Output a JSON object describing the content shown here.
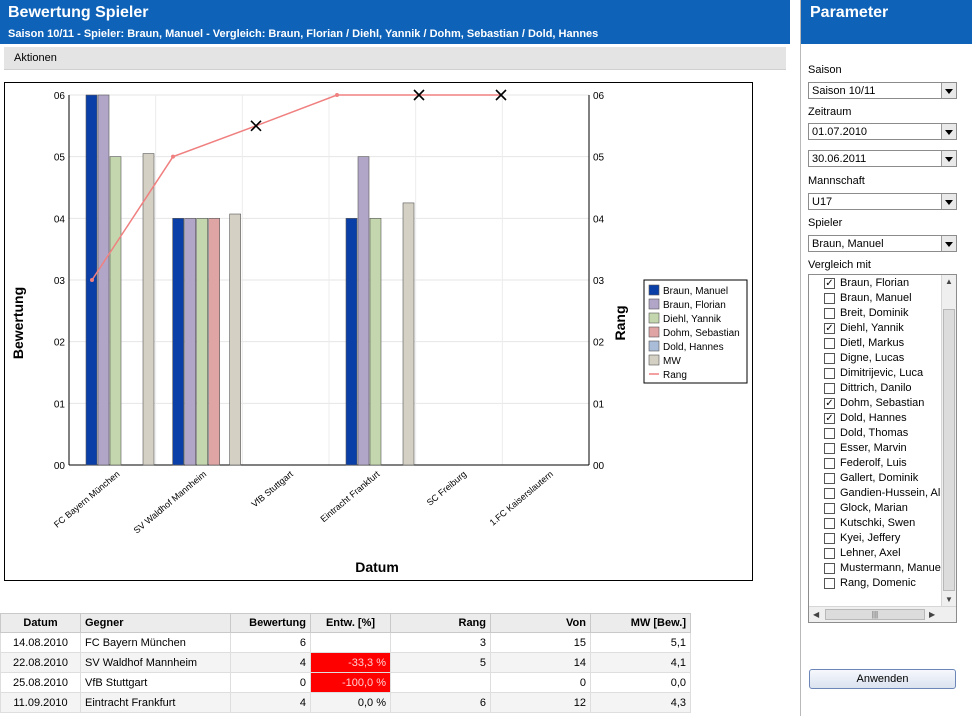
{
  "header": {
    "title": "Bewertung Spieler",
    "subtitle": "Saison 10/11 - Spieler: Braun, Manuel - Vergleich: Braun, Florian / Diehl, Yannik / Dohm, Sebastian / Dold, Hannes"
  },
  "toolbar": {
    "actions_label": "Aktionen"
  },
  "chart_data": {
    "type": "bar",
    "title": "",
    "xlabel": "Datum",
    "ylabel": "Bewertung",
    "y2label": "Rang",
    "ylim": [
      0,
      6
    ],
    "y2lim": [
      0,
      6
    ],
    "yticks": [
      "00",
      "01",
      "02",
      "03",
      "04",
      "05",
      "06"
    ],
    "y2ticks": [
      "00",
      "01",
      "02",
      "03",
      "04",
      "05",
      "06"
    ],
    "categories": [
      "FC Bayern München",
      "SV Waldhof Mannheim",
      "VfB Stuttgart",
      "Eintracht Frankfurt",
      "SC Freiburg",
      "1.FC Kaiserslautern"
    ],
    "series": [
      {
        "name": "Braun, Manuel",
        "color": "#0b3fa8",
        "values": [
          6,
          4,
          null,
          4,
          null,
          null
        ]
      },
      {
        "name": "Braun, Florian",
        "color": "#b2a6c8",
        "values": [
          6,
          4,
          null,
          5,
          null,
          null
        ]
      },
      {
        "name": "Diehl, Yannik",
        "color": "#c3d6ad",
        "values": [
          5,
          4,
          null,
          4,
          null,
          null
        ]
      },
      {
        "name": "Dohm, Sebastian",
        "color": "#dfa4a4",
        "values": [
          null,
          4,
          null,
          null,
          null,
          null
        ]
      },
      {
        "name": "Dold, Hannes",
        "color": "#a9bcd8",
        "values": [
          null,
          null,
          null,
          null,
          null,
          null
        ]
      },
      {
        "name": "MW",
        "color": "#d4d0c3",
        "values": [
          5.05,
          4.07,
          null,
          4.25,
          null,
          null
        ]
      }
    ],
    "line_series": {
      "name": "Rang",
      "color": "#f08080",
      "values": [
        3,
        5,
        5.5,
        6,
        6,
        6
      ],
      "markers": [
        "dot",
        "dot",
        "x",
        "dot",
        "x",
        "x"
      ]
    },
    "grid": true,
    "legend_position": "right"
  },
  "table": {
    "columns": [
      "Datum",
      "Gegner",
      "Bewertung",
      "Entw. [%]",
      "Rang",
      "Von",
      "MW [Bew.]"
    ],
    "rows": [
      {
        "datum": "14.08.2010",
        "gegner": "FC Bayern München",
        "bewertung": "6",
        "entw": "",
        "entw_neg": false,
        "rang": "3",
        "von": "15",
        "mw": "5,1"
      },
      {
        "datum": "22.08.2010",
        "gegner": "SV Waldhof Mannheim",
        "bewertung": "4",
        "entw": "-33,3 %",
        "entw_neg": true,
        "rang": "5",
        "von": "14",
        "mw": "4,1"
      },
      {
        "datum": "25.08.2010",
        "gegner": "VfB Stuttgart",
        "bewertung": "0",
        "entw": "-100,0 %",
        "entw_neg": true,
        "rang": "",
        "von": "0",
        "mw": "0,0"
      },
      {
        "datum": "11.09.2010",
        "gegner": "Eintracht Frankfurt",
        "bewertung": "4",
        "entw": "0,0 %",
        "entw_neg": false,
        "rang": "6",
        "von": "12",
        "mw": "4,3"
      }
    ]
  },
  "sidebar": {
    "title": "Parameter",
    "saison_label": "Saison",
    "saison_value": "Saison 10/11",
    "zeitraum_label": "Zeitraum",
    "date_from": "01.07.2010",
    "date_to": "30.06.2011",
    "mannschaft_label": "Mannschaft",
    "mannschaft_value": "U17",
    "spieler_label": "Spieler",
    "spieler_value": "Braun, Manuel",
    "vergleich_label": "Vergleich mit",
    "compare_list": [
      {
        "name": "Braun, Florian",
        "checked": true
      },
      {
        "name": "Braun, Manuel",
        "checked": false
      },
      {
        "name": "Breit, Dominik",
        "checked": false
      },
      {
        "name": "Diehl, Yannik",
        "checked": true
      },
      {
        "name": "Dietl, Markus",
        "checked": false
      },
      {
        "name": "Digne, Lucas",
        "checked": false
      },
      {
        "name": "Dimitrijevic, Luca",
        "checked": false
      },
      {
        "name": "Dittrich, Danilo",
        "checked": false
      },
      {
        "name": "Dohm, Sebastian",
        "checked": true
      },
      {
        "name": "Dold, Hannes",
        "checked": true
      },
      {
        "name": "Dold, Thomas",
        "checked": false
      },
      {
        "name": "Esser, Marvin",
        "checked": false
      },
      {
        "name": "Federolf, Luis",
        "checked": false
      },
      {
        "name": "Gallert, Dominik",
        "checked": false
      },
      {
        "name": "Gandien-Hussein, Ali",
        "checked": false
      },
      {
        "name": "Glock, Marian",
        "checked": false
      },
      {
        "name": "Kutschki, Swen",
        "checked": false
      },
      {
        "name": "Kyei, Jeffery",
        "checked": false
      },
      {
        "name": "Lehner, Axel",
        "checked": false
      },
      {
        "name": "Mustermann, Manuel",
        "checked": false
      },
      {
        "name": "Rang, Domenic",
        "checked": false
      }
    ],
    "apply_label": "Anwenden"
  }
}
